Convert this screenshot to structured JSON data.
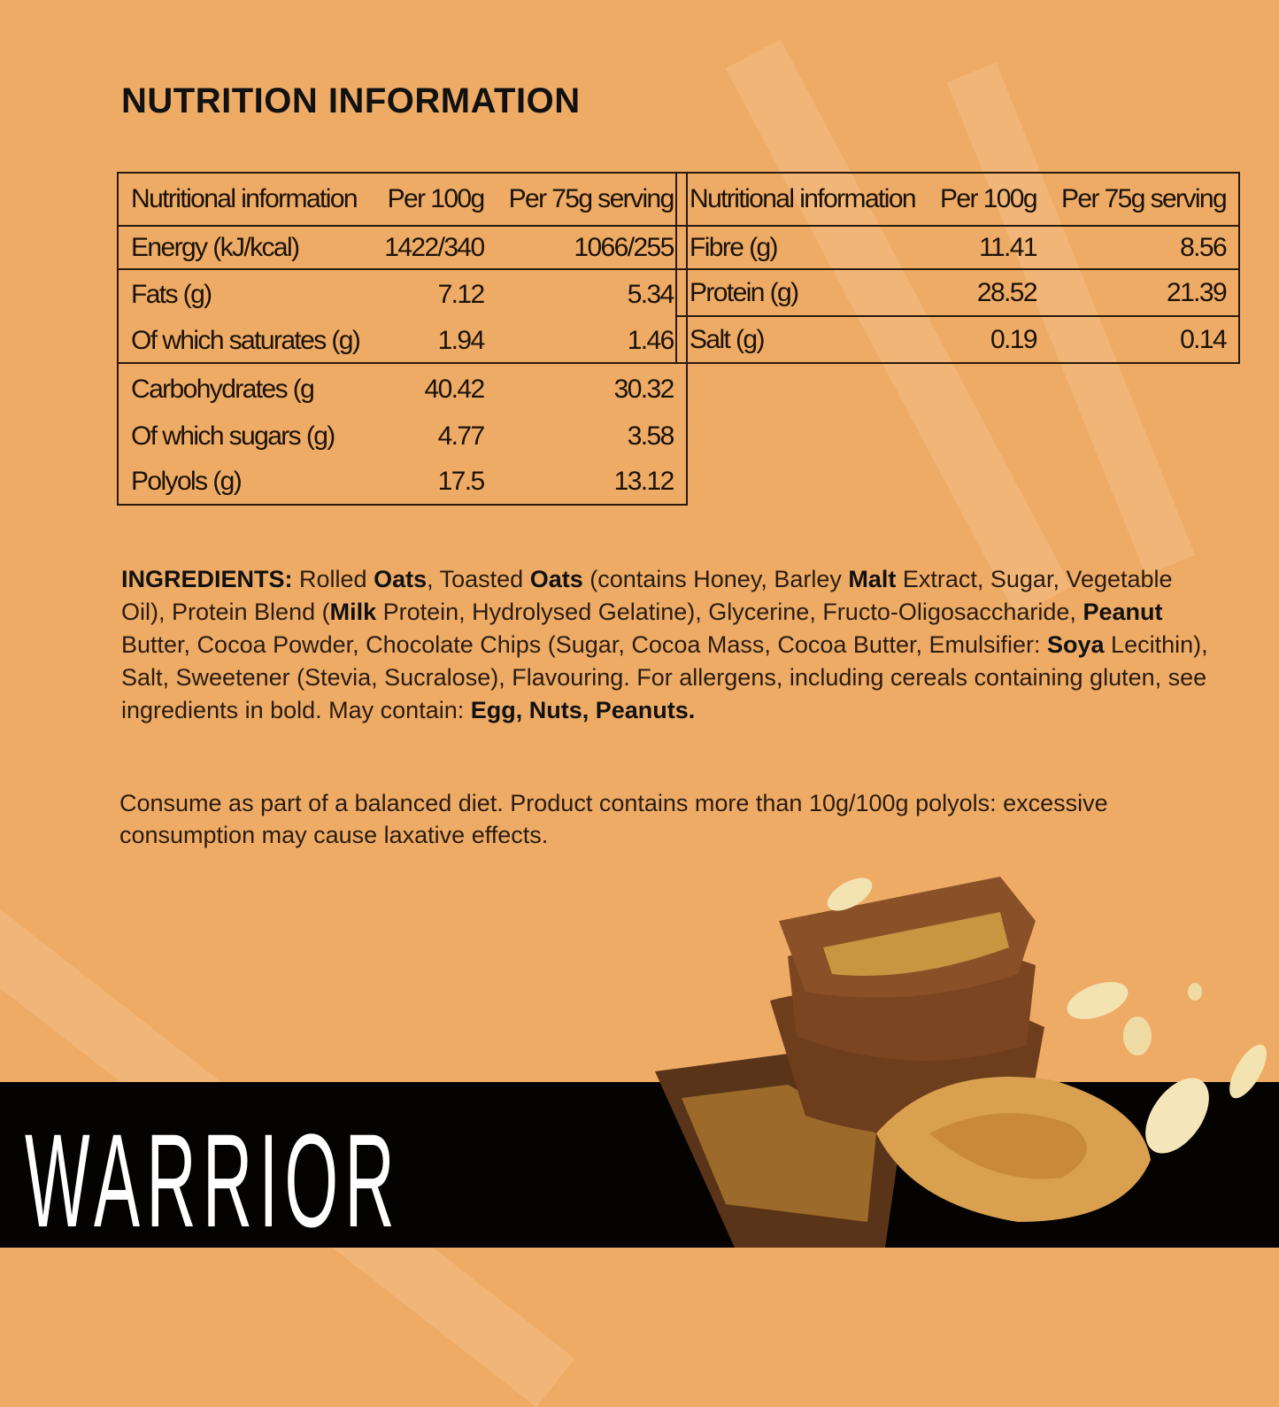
{
  "title": "NUTRITION INFORMATION",
  "table_left": {
    "headers": [
      "Nutritional information",
      "Per 100g",
      "Per 75g serving"
    ],
    "rows": [
      [
        "Energy (kJ/kcal)",
        "1422/340",
        "1066/255"
      ],
      [
        "Fats (g)",
        "7.12",
        "5.34"
      ],
      [
        "Of which saturates (g)",
        "1.94",
        "1.46"
      ],
      [
        "Carbohydrates (g",
        "40.42",
        "30.32"
      ],
      [
        "Of which sugars (g)",
        "4.77",
        "3.58"
      ],
      [
        "Polyols (g)",
        "17.5",
        "13.12"
      ]
    ]
  },
  "table_right": {
    "headers": [
      "Nutritional information",
      "Per 100g",
      "Per 75g serving"
    ],
    "rows": [
      [
        "Fibre (g)",
        "11.41",
        "8.56"
      ],
      [
        "Protein (g)",
        "28.52",
        "21.39"
      ],
      [
        "Salt (g)",
        "0.19",
        "0.14"
      ]
    ]
  },
  "ingredients": [
    {
      "text": "INGREDIENTS:",
      "bold": true
    },
    {
      "text": " Rolled ",
      "bold": false
    },
    {
      "text": "Oats",
      "bold": true
    },
    {
      "text": ", Toasted ",
      "bold": false
    },
    {
      "text": "Oats",
      "bold": true
    },
    {
      "text": " (contains Honey, Barley ",
      "bold": false
    },
    {
      "text": "Malt",
      "bold": true
    },
    {
      "text": " Extract, Sugar, Vegetable Oil), Protein Blend (",
      "bold": false
    },
    {
      "text": "Milk",
      "bold": true
    },
    {
      "text": " Protein, Hydrolysed Gelatine), Glycerine, Fructo-Oligosaccharide, ",
      "bold": false
    },
    {
      "text": "Peanut",
      "bold": true
    },
    {
      "text": " Butter, Cocoa Powder, Chocolate Chips (Sugar, Cocoa Mass, Cocoa Butter, Emulsifier: ",
      "bold": false
    },
    {
      "text": "Soya",
      "bold": true
    },
    {
      "text": " Lecithin), Salt, Sweetener (Stevia, Sucralose), Flavouring. For allergens, including cereals containing gluten, see ingredients in bold. May contain: ",
      "bold": false
    },
    {
      "text": "Egg, Nuts, Peanuts.",
      "bold": true
    }
  ],
  "note": "Consume as part of a balanced diet. Product contains more than 10g/100g polyols: excessive consumption may cause laxative effects.",
  "brand": "WARRIOR",
  "colors": {
    "background": "#eeab66",
    "band": "#050302",
    "text": "#1b1208"
  }
}
